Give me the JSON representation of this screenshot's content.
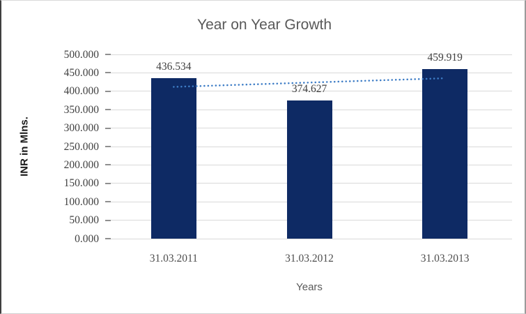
{
  "chart_data": {
    "type": "bar",
    "title": "Year on Year Growth",
    "xlabel": "Years",
    "ylabel": "INR in Mlns.",
    "categories": [
      "31.03.2011",
      "31.03.2012",
      "31.03.2013"
    ],
    "series": [
      {
        "role": "bars",
        "values": [
          436.534,
          374.627,
          459.919
        ],
        "color": "#0e2a64"
      },
      {
        "role": "linear-trendline",
        "style": "dotted",
        "values": [
          412.0,
          423.69,
          435.39
        ],
        "color": "#3e7dc6"
      }
    ],
    "data_labels": [
      "436.534",
      "374.627",
      "459.919"
    ],
    "ylim": [
      0,
      500
    ],
    "ytick_step": 50,
    "ytick_decimals": 3,
    "ytick_labels": [
      "0.000",
      "50.000",
      "100.000",
      "150.000",
      "200.000",
      "250.000",
      "300.000",
      "350.000",
      "400.000",
      "450.000",
      "500.000"
    ],
    "grid": "horizontal",
    "legend": "none",
    "colors": {
      "bar": "#0e2a64",
      "trendline": "#3e7dc6",
      "gridline": "#d9d9d9",
      "tick_mark": "#8f8f8f",
      "title_text": "#595959",
      "tick_text": "#3f3f3f"
    }
  }
}
